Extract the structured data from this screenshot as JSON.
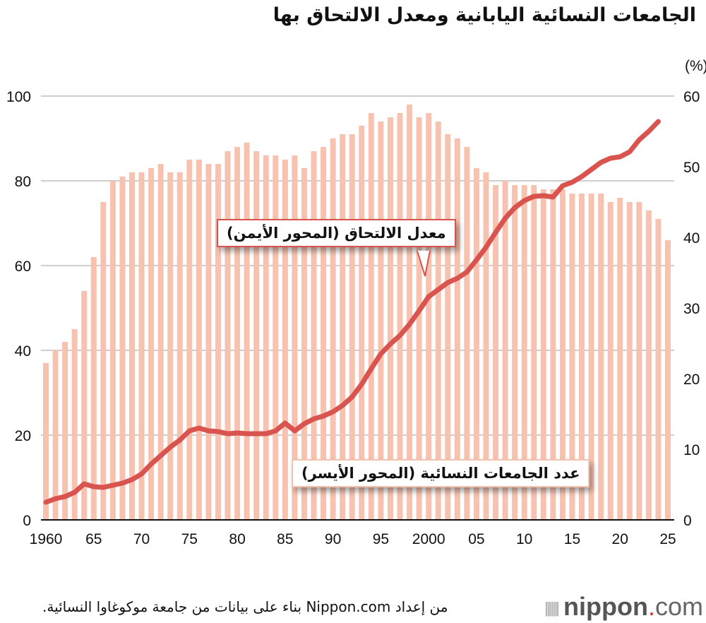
{
  "title": "الجامعات النسائية اليابانية ومعدل الالتحاق بها",
  "chart_data": {
    "type": "bar+line",
    "title": "الجامعات النسائية اليابانية ومعدل الالتحاق بها",
    "right_axis_unit": "(%)",
    "x": [
      1960,
      1961,
      1962,
      1963,
      1964,
      1965,
      1966,
      1967,
      1968,
      1969,
      1970,
      1971,
      1972,
      1973,
      1974,
      1975,
      1976,
      1977,
      1978,
      1979,
      1980,
      1981,
      1982,
      1983,
      1984,
      1985,
      1986,
      1987,
      1988,
      1989,
      1990,
      1991,
      1992,
      1993,
      1994,
      1995,
      1996,
      1997,
      1998,
      1999,
      2000,
      2001,
      2002,
      2003,
      2004,
      2005,
      2006,
      2007,
      2008,
      2009,
      2010,
      2011,
      2012,
      2013,
      2014,
      2015,
      2016,
      2017,
      2018,
      2019,
      2020,
      2021,
      2022,
      2023,
      2024,
      2025
    ],
    "x_tick_labels": [
      {
        "year": 1960,
        "label": "1960"
      },
      {
        "year": 1965,
        "label": "65"
      },
      {
        "year": 1970,
        "label": "70"
      },
      {
        "year": 1975,
        "label": "75"
      },
      {
        "year": 1980,
        "label": "80"
      },
      {
        "year": 1985,
        "label": "85"
      },
      {
        "year": 1990,
        "label": "90"
      },
      {
        "year": 1995,
        "label": "95"
      },
      {
        "year": 2000,
        "label": "2000"
      },
      {
        "year": 2005,
        "label": "05"
      },
      {
        "year": 2010,
        "label": "10"
      },
      {
        "year": 2015,
        "label": "15"
      },
      {
        "year": 2020,
        "label": "20"
      },
      {
        "year": 2025,
        "label": "25"
      }
    ],
    "left_axis": {
      "ylim": [
        0,
        100
      ],
      "ticks": [
        0,
        20,
        40,
        60,
        80,
        100
      ]
    },
    "right_axis": {
      "ylim": [
        0,
        60
      ],
      "ticks": [
        0,
        10,
        20,
        30,
        40,
        50,
        60
      ]
    },
    "grid": true,
    "series": [
      {
        "name": "عدد الجامعات النسائية (المحور الأيسر)",
        "type": "bar",
        "axis": "left",
        "color": "#f7c3b0",
        "values": [
          37,
          40,
          42,
          45,
          54,
          62,
          75,
          80,
          81,
          82,
          82,
          83,
          84,
          82,
          82,
          85,
          85,
          84,
          84,
          87,
          88,
          89,
          87,
          86,
          86,
          85,
          86,
          83,
          87,
          88,
          90,
          91,
          91,
          93,
          96,
          94,
          95,
          96,
          98,
          95,
          96,
          94,
          91,
          90,
          88,
          83,
          82,
          79,
          80,
          79,
          79,
          79,
          78,
          78,
          78,
          77,
          77,
          77,
          77,
          75,
          76,
          75,
          75,
          73,
          71,
          66
        ]
      },
      {
        "name": "معدل الالتحاق (المحور الأيمن)",
        "type": "line",
        "axis": "right",
        "color": "#d9534f",
        "values": [
          2.5,
          3.0,
          3.3,
          3.9,
          5.1,
          4.7,
          4.6,
          4.9,
          5.2,
          5.7,
          6.5,
          7.9,
          9.1,
          10.3,
          11.3,
          12.6,
          13.0,
          12.6,
          12.5,
          12.2,
          12.3,
          12.2,
          12.2,
          12.2,
          12.6,
          13.7,
          12.6,
          13.6,
          14.3,
          14.7,
          15.3,
          16.2,
          17.4,
          19.2,
          21.4,
          23.5,
          24.9,
          26.1,
          27.7,
          29.6,
          31.6,
          32.6,
          33.6,
          34.2,
          35.1,
          36.8,
          38.6,
          40.7,
          42.7,
          44.2,
          45.2,
          45.8,
          45.9,
          45.7,
          47.3,
          47.8,
          48.6,
          49.6,
          50.6,
          51.2,
          51.4,
          52.1,
          53.8,
          55.0,
          56.4,
          null
        ]
      }
    ]
  },
  "callouts": {
    "line_label": "معدل الالتحاق (المحور الأيمن)",
    "bar_label": "عدد الجامعات النسائية (المحور الأيسر)"
  },
  "footer": {
    "source": "من إعداد Nippon.com بناء على بيانات من جامعة موكوغاوا النسائية.",
    "logo_text": "nippon.com"
  }
}
